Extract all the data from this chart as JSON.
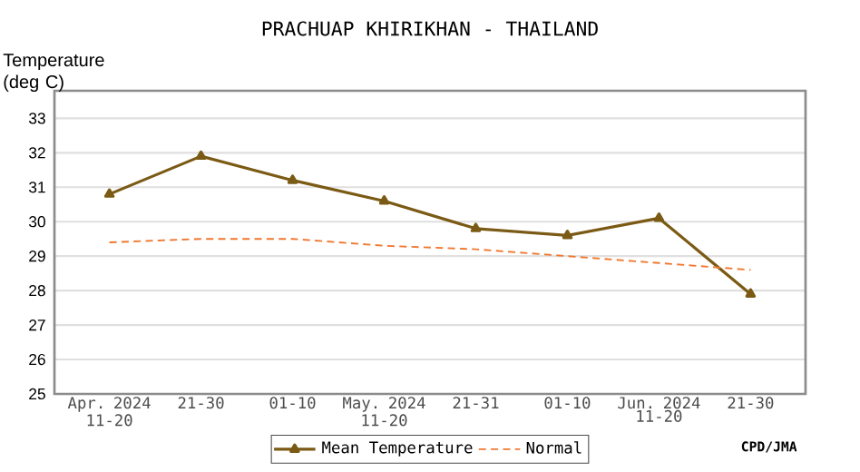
{
  "chart_data": {
    "type": "line",
    "title": "PRACHUAP KHIRIKHAN - THAILAND",
    "ylabel": "Temperature (deg C)",
    "categories": [
      "Apr. 2024 11-20",
      "21-30",
      "01-10",
      "May. 2024 11-20",
      "21-31",
      "01-10",
      "Jun. 2024 11-20",
      "21-30"
    ],
    "series": [
      {
        "name": "Mean Temperature",
        "color": "#7a5a14",
        "values": [
          30.8,
          31.9,
          31.2,
          30.6,
          29.8,
          29.6,
          30.1,
          27.9
        ],
        "marker": "triangle",
        "line_style": "solid"
      },
      {
        "name": "Normal",
        "color": "#f07830",
        "values": [
          29.4,
          29.5,
          29.5,
          29.3,
          29.2,
          29.0,
          28.8,
          28.6
        ],
        "marker": "none",
        "line_style": "dotted"
      }
    ],
    "ylim": [
      25,
      33.8
    ],
    "yticks": [
      25,
      26,
      27,
      28,
      29,
      30,
      31,
      32,
      33
    ],
    "grid": "y",
    "legend": "bottom",
    "annotations": [
      "CPD/JMA"
    ]
  }
}
